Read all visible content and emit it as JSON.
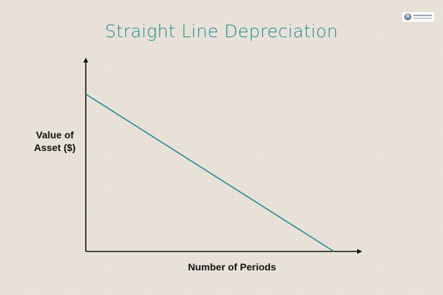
{
  "chart_data": {
    "type": "line",
    "title": "Straight Line Depreciation",
    "ylabel_lines": [
      "Value of",
      "Asset ($)"
    ],
    "xlabel": "Number of Periods",
    "xlim": [
      0,
      1
    ],
    "ylim": [
      0,
      1
    ],
    "grid": false,
    "series": [
      {
        "x": [
          0,
          0.9
        ],
        "y": [
          0.8,
          0
        ]
      }
    ],
    "colors": {
      "line": "#1f8a8c",
      "title": "#1f8a8c",
      "axis": "#111111"
    }
  },
  "logo": {
    "icon": "logo-circle-icon",
    "letter": "B"
  }
}
